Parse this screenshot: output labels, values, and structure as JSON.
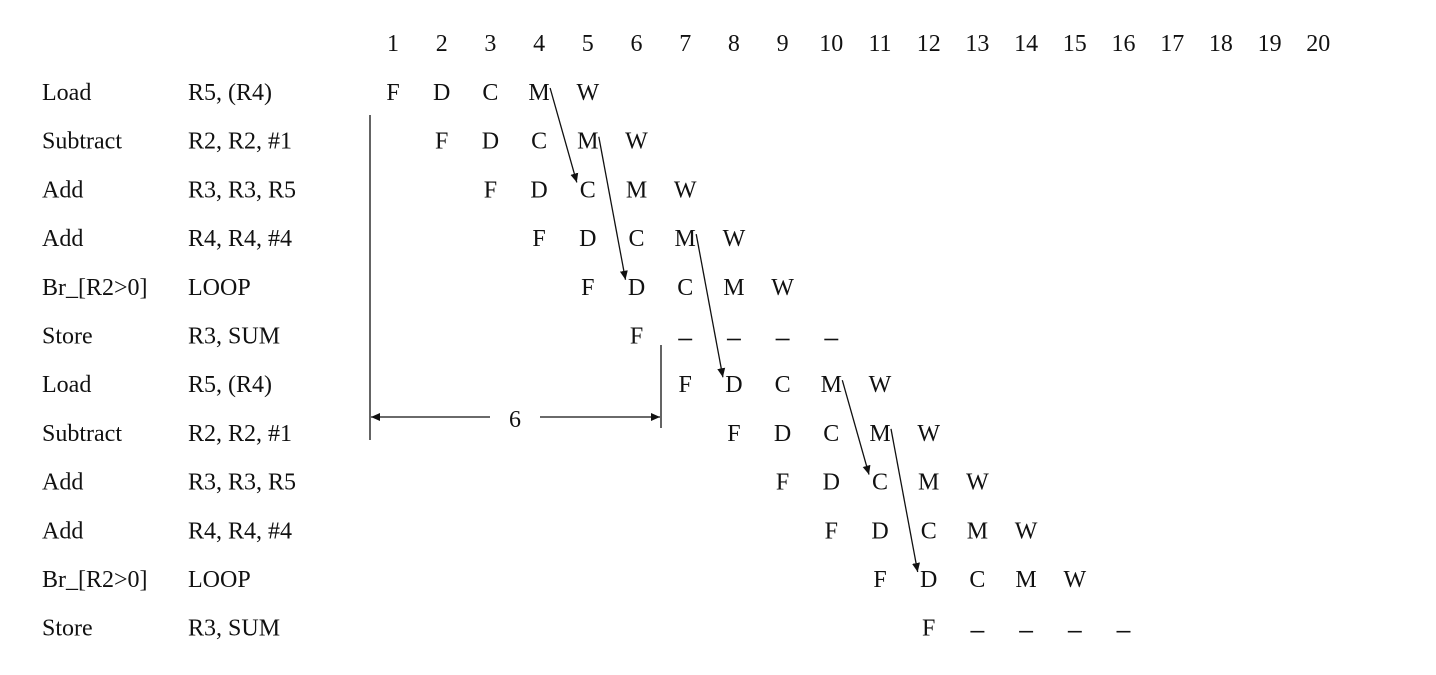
{
  "cycles": [
    "1",
    "2",
    "3",
    "4",
    "5",
    "6",
    "7",
    "8",
    "9",
    "10",
    "11",
    "12",
    "13",
    "14",
    "15",
    "16",
    "17",
    "18",
    "19",
    "20"
  ],
  "instructions": [
    {
      "op": "Load",
      "operands": "R5, (R4)",
      "start": 1,
      "stages": [
        "F",
        "D",
        "C",
        "M",
        "W"
      ]
    },
    {
      "op": "Subtract",
      "operands": "R2, R2, #1",
      "start": 2,
      "stages": [
        "F",
        "D",
        "C",
        "M",
        "W"
      ]
    },
    {
      "op": "Add",
      "operands": "R3, R3, R5",
      "start": 3,
      "stages": [
        "F",
        "D",
        "C",
        "M",
        "W"
      ]
    },
    {
      "op": "Add",
      "operands": "R4, R4, #4",
      "start": 4,
      "stages": [
        "F",
        "D",
        "C",
        "M",
        "W"
      ]
    },
    {
      "op": "Br_[R2>0]",
      "operands": "LOOP",
      "start": 5,
      "stages": [
        "F",
        "D",
        "C",
        "M",
        "W"
      ]
    },
    {
      "op": "Store",
      "operands": "R3, SUM",
      "start": 6,
      "stages": [
        "F",
        "–",
        "–",
        "–",
        "–"
      ]
    },
    {
      "op": "Load",
      "operands": "R5, (R4)",
      "start": 7,
      "stages": [
        "F",
        "D",
        "C",
        "M",
        "W"
      ]
    },
    {
      "op": "Subtract",
      "operands": "R2, R2, #1",
      "start": 8,
      "stages": [
        "F",
        "D",
        "C",
        "M",
        "W"
      ]
    },
    {
      "op": "Add",
      "operands": "R3, R3, R5",
      "start": 9,
      "stages": [
        "F",
        "D",
        "C",
        "M",
        "W"
      ]
    },
    {
      "op": "Add",
      "operands": "R4, R4, #4",
      "start": 10,
      "stages": [
        "F",
        "D",
        "C",
        "M",
        "W"
      ]
    },
    {
      "op": "Br_[R2>0]",
      "operands": "LOOP",
      "start": 11,
      "stages": [
        "F",
        "D",
        "C",
        "M",
        "W"
      ]
    },
    {
      "op": "Store",
      "operands": "R3, SUM",
      "start": 12,
      "stages": [
        "F",
        "–",
        "–",
        "–",
        "–"
      ]
    }
  ],
  "forwarding_arrows": [
    {
      "from": {
        "row": 0,
        "cycle": 4
      },
      "to": {
        "row": 2,
        "cycle": 5
      }
    },
    {
      "from": {
        "row": 1,
        "cycle": 5
      },
      "to": {
        "row": 4,
        "cycle": 6
      }
    },
    {
      "from": {
        "row": 3,
        "cycle": 7
      },
      "to": {
        "row": 6,
        "cycle": 8
      }
    },
    {
      "from": {
        "row": 6,
        "cycle": 10
      },
      "to": {
        "row": 8,
        "cycle": 11
      }
    },
    {
      "from": {
        "row": 7,
        "cycle": 11
      },
      "to": {
        "row": 10,
        "cycle": 12
      }
    }
  ],
  "interval": {
    "label": "6",
    "from_row": 1,
    "to_row": 6
  }
}
